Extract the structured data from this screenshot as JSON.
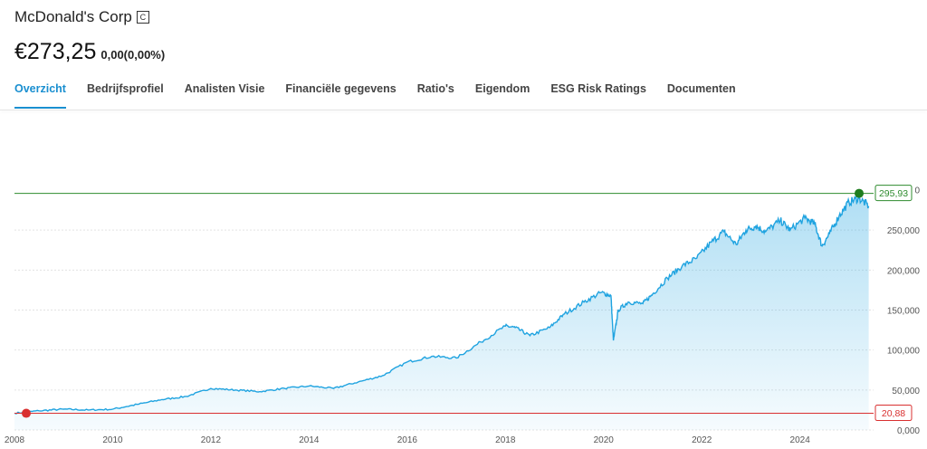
{
  "header": {
    "company": "McDonald's Corp",
    "badge": "C",
    "price": "€273,25",
    "change": "0,00(0,00%)"
  },
  "tabs": [
    {
      "label": "Overzicht",
      "active": true
    },
    {
      "label": "Bedrijfsprofiel",
      "active": false
    },
    {
      "label": "Analisten Visie",
      "active": false
    },
    {
      "label": "Financiële gegevens",
      "active": false
    },
    {
      "label": "Ratio's",
      "active": false
    },
    {
      "label": "Eigendom",
      "active": false
    },
    {
      "label": "ESG Risk Ratings",
      "active": false
    },
    {
      "label": "Documenten",
      "active": false
    }
  ],
  "colors": {
    "accent": "#1a8fd0",
    "line": "#1fa3e0",
    "high": "#2e8b2e",
    "low": "#d93030"
  },
  "chart_data": {
    "type": "area",
    "x_ticks": [
      "2008",
      "2010",
      "2012",
      "2014",
      "2016",
      "2018",
      "2020",
      "2022",
      "2024"
    ],
    "y_ticks": [
      "0,000",
      "50,000",
      "100,000",
      "150,000",
      "200,000",
      "250,000"
    ],
    "ylim": [
      0,
      300
    ],
    "xlim": [
      2008,
      2025.5
    ],
    "high_label": "295,93",
    "low_label": "20,88",
    "high_value": 295.93,
    "low_value": 20.88,
    "series": [
      {
        "x": [
          2008.0,
          2008.5,
          2009.0,
          2009.5,
          2010.0,
          2010.5,
          2011.0,
          2011.5,
          2012.0,
          2012.5,
          2013.0,
          2013.5,
          2014.0,
          2014.5,
          2015.0,
          2015.5,
          2016.0,
          2016.5,
          2017.0,
          2017.5,
          2018.0,
          2018.2,
          2018.5,
          2018.9,
          2019.2,
          2019.6,
          2019.95,
          2020.15,
          2020.2,
          2020.3,
          2020.5,
          2020.8,
          2021.0,
          2021.3,
          2021.6,
          2021.9,
          2022.2,
          2022.45,
          2022.7,
          2022.9,
          2023.1,
          2023.3,
          2023.6,
          2023.8,
          2024.1,
          2024.3,
          2024.45,
          2024.6,
          2024.8,
          2025.0,
          2025.2,
          2025.4
        ],
        "y": [
          21,
          24,
          26,
          25,
          26,
          32,
          38,
          42,
          52,
          50,
          48,
          52,
          55,
          52,
          60,
          68,
          85,
          92,
          90,
          110,
          130,
          128,
          118,
          128,
          145,
          160,
          172,
          168,
          112,
          150,
          160,
          158,
          170,
          190,
          205,
          215,
          235,
          248,
          232,
          250,
          255,
          248,
          262,
          250,
          265,
          258,
          230,
          245,
          268,
          285,
          290,
          280
        ]
      }
    ]
  }
}
